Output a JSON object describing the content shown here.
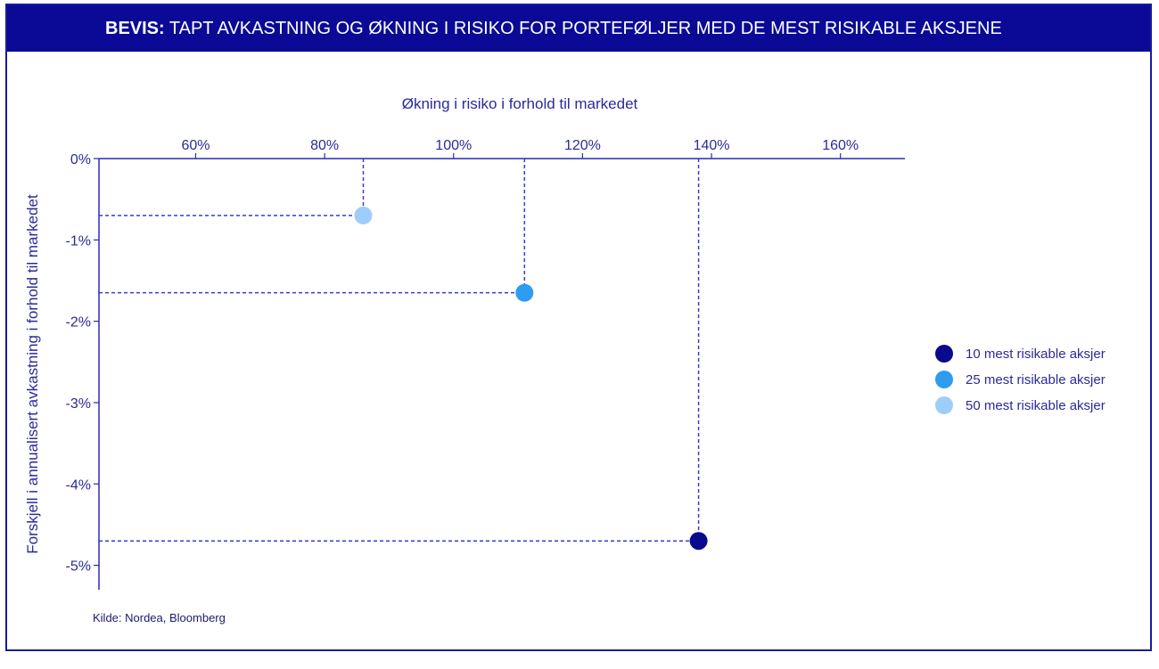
{
  "banner": {
    "prefix": "BEVIS:",
    "title": "TAPT AVKASTNING OG ØKNING I RISIKO FOR PORTEFØLJER MED DE MEST RISIKABLE AKSJENE"
  },
  "source": "Kilde: Nordea, Bloomberg",
  "colors": {
    "axis": "#2a2ab8",
    "guide": "#3b3bd0",
    "text": "#2a2a9a"
  },
  "chart_data": {
    "type": "scatter",
    "xlabel": "Økning i risiko i forhold til markedet",
    "ylabel": "Forskjell i annualisert avkastning i forhold til markedet",
    "x_axis_position": "top",
    "xlim": [
      45,
      170
    ],
    "ylim": [
      -5.3,
      0
    ],
    "x_ticks": [
      60,
      80,
      100,
      120,
      140,
      160
    ],
    "x_tick_labels": [
      "60%",
      "80%",
      "100%",
      "120%",
      "140%",
      "160%"
    ],
    "y_ticks": [
      0,
      -1,
      -2,
      -3,
      -4,
      -5
    ],
    "y_tick_labels": [
      "0%",
      "-1%",
      "-2%",
      "-3%",
      "-4%",
      "-5%"
    ],
    "grid": false,
    "guide_lines": "dashed",
    "legend_position": "right",
    "series": [
      {
        "name": "10 mest risikable aksjer",
        "color": "#0a0a8c",
        "x": 138,
        "y": -4.7
      },
      {
        "name": "25 mest risikable aksjer",
        "color": "#2e9cf0",
        "x": 111,
        "y": -1.65
      },
      {
        "name": "50 mest risikable aksjer",
        "color": "#9fcdfa",
        "x": 86,
        "y": -0.7
      }
    ]
  }
}
